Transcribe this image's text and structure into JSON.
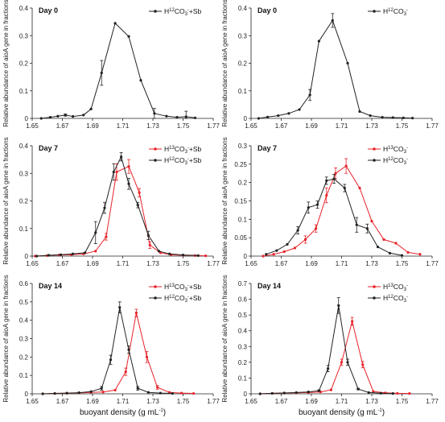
{
  "colors": {
    "black_series": "#222222",
    "red_series": "#e8232a",
    "axis": "#222222"
  },
  "chart_data": [
    {
      "type": "line",
      "title": "Day 0",
      "xlabel": "",
      "ylabel": "Relative abundance of aioA gene in fractions",
      "xlim": [
        1.65,
        1.77
      ],
      "ylim": [
        0,
        0.4
      ],
      "xticks": [
        "1.65",
        "1.67",
        "1.69",
        "1.71",
        "1.73",
        "1.75",
        "1.77"
      ],
      "yticks": [
        "0",
        "0.1",
        "0.2",
        "0.3",
        "0.4"
      ],
      "legend_position": "top-right",
      "series": [
        {
          "name": "H12CO3-+Sb",
          "legend": {
            "pre": "H",
            "sup": "12",
            "mid": "CO",
            "sub": "3",
            "post": "+Sb",
            "sup2": "-"
          },
          "color": "black",
          "x": [
            1.656,
            1.662,
            1.667,
            1.672,
            1.677,
            1.684,
            1.689,
            1.696,
            1.705,
            1.714,
            1.722,
            1.731,
            1.739,
            1.746,
            1.752,
            1.758
          ],
          "y": [
            0.0,
            0.004,
            0.008,
            0.012,
            0.007,
            0.012,
            0.034,
            0.165,
            0.345,
            0.297,
            0.138,
            0.018,
            0.008,
            0.004,
            0.006,
            0.002
          ],
          "err": [
            0,
            0,
            0,
            0.004,
            0,
            0,
            0,
            0.045,
            0,
            0,
            0,
            0.018,
            0,
            0,
            0.02,
            0
          ]
        }
      ]
    },
    {
      "type": "line",
      "title": "Day 0",
      "xlabel": "",
      "ylabel": "Relative abundance of aioA gene in fractions",
      "xlim": [
        1.65,
        1.77
      ],
      "ylim": [
        0,
        0.4
      ],
      "xticks": [
        "1.65",
        "1.67",
        "1.69",
        "1.71",
        "1.73",
        "1.75",
        "1.77"
      ],
      "yticks": [
        "0",
        "0.1",
        "0.2",
        "0.3",
        "0.4"
      ],
      "legend_position": "top-right",
      "series": [
        {
          "name": "H12CO3-",
          "legend": {
            "pre": "H",
            "sup": "12",
            "mid": "CO",
            "sub": "3",
            "post": "",
            "sup2": "-"
          },
          "color": "black",
          "x": [
            1.655,
            1.661,
            1.668,
            1.675,
            1.682,
            1.689,
            1.695,
            1.704,
            1.714,
            1.722,
            1.729,
            1.737,
            1.744,
            1.751,
            1.757
          ],
          "y": [
            0.0,
            0.005,
            0.01,
            0.018,
            0.032,
            0.085,
            0.28,
            0.355,
            0.2,
            0.025,
            0.01,
            0.004,
            0.003,
            0.002,
            0.001
          ],
          "err": [
            0,
            0,
            0,
            0,
            0,
            0.02,
            0,
            0.025,
            0,
            0,
            0,
            0,
            0,
            0,
            0
          ]
        }
      ]
    },
    {
      "type": "line",
      "title": "Day 7",
      "xlabel": "",
      "ylabel": "Relative abundance of aioA gene in fractions",
      "xlim": [
        1.65,
        1.77
      ],
      "ylim": [
        0,
        0.4
      ],
      "xticks": [
        "1.65",
        "1.67",
        "1.69",
        "1.71",
        "1.73",
        "1.75",
        "1.77"
      ],
      "yticks": [
        "0",
        "0.1",
        "0.2",
        "0.3",
        "0.4"
      ],
      "legend_position": "top-right",
      "series": [
        {
          "name": "H13CO3-+Sb",
          "legend": {
            "pre": "H",
            "sup": "13",
            "mid": "CO",
            "sub": "3",
            "post": "+Sb",
            "sup2": "-"
          },
          "color": "red",
          "x": [
            1.652,
            1.66,
            1.668,
            1.676,
            1.684,
            1.692,
            1.699,
            1.706,
            1.714,
            1.721,
            1.728,
            1.735,
            1.742,
            1.75,
            1.758,
            1.765
          ],
          "y": [
            0.0,
            0.002,
            0.004,
            0.005,
            0.008,
            0.018,
            0.07,
            0.305,
            0.325,
            0.23,
            0.04,
            0.012,
            0.005,
            0.003,
            0.002,
            0.001
          ],
          "err": [
            0,
            0,
            0,
            0,
            0,
            0,
            0.012,
            0.03,
            0.025,
            0.015,
            0.012,
            0,
            0,
            0,
            0,
            0
          ]
        },
        {
          "name": "H12CO3-+Sb",
          "legend": {
            "pre": "H",
            "sup": "12",
            "mid": "CO",
            "sub": "3",
            "post": "+Sb",
            "sup2": "-"
          },
          "color": "black",
          "x": [
            1.653,
            1.661,
            1.669,
            1.677,
            1.685,
            1.692,
            1.698,
            1.704,
            1.709,
            1.714,
            1.72,
            1.727,
            1.734,
            1.741,
            1.75,
            1.76
          ],
          "y": [
            0.0,
            0.003,
            0.005,
            0.008,
            0.012,
            0.085,
            0.175,
            0.305,
            0.36,
            0.262,
            0.185,
            0.075,
            0.018,
            0.008,
            0.004,
            0.002
          ],
          "err": [
            0,
            0,
            0,
            0,
            0,
            0.04,
            0.02,
            0.03,
            0.015,
            0.02,
            0.01,
            0.015,
            0,
            0,
            0,
            0
          ]
        }
      ]
    },
    {
      "type": "line",
      "title": "Day 7",
      "xlabel": "",
      "ylabel": "Relative abundance of aioA gene in fractions",
      "xlim": [
        1.65,
        1.77
      ],
      "ylim": [
        0,
        0.3
      ],
      "xticks": [
        "1.65",
        "1.67",
        "1.69",
        "1.71",
        "1.73",
        "1.75",
        "1.77"
      ],
      "yticks": [
        "0",
        "0.05",
        "0.1",
        "0.15",
        "0.2",
        "0.25",
        "0.3"
      ],
      "legend_position": "top-right",
      "series": [
        {
          "name": "H13CO3-",
          "legend": {
            "pre": "H",
            "sup": "13",
            "mid": "CO",
            "sub": "3",
            "post": "",
            "sup2": "-"
          },
          "color": "red",
          "x": [
            1.658,
            1.665,
            1.672,
            1.679,
            1.686,
            1.693,
            1.7,
            1.706,
            1.713,
            1.722,
            1.73,
            1.738,
            1.746,
            1.754,
            1.762
          ],
          "y": [
            0.0,
            0.005,
            0.012,
            0.022,
            0.045,
            0.075,
            0.165,
            0.225,
            0.245,
            0.185,
            0.095,
            0.045,
            0.035,
            0.01,
            0.005
          ],
          "err": [
            0,
            0,
            0,
            0,
            0.01,
            0.01,
            0.02,
            0.015,
            0.02,
            0,
            0,
            0,
            0,
            0,
            0
          ]
        },
        {
          "name": "H12CO3-",
          "legend": {
            "pre": "H",
            "sup": "12",
            "mid": "CO",
            "sub": "3",
            "post": "",
            "sup2": "-"
          },
          "color": "black",
          "x": [
            1.66,
            1.667,
            1.674,
            1.681,
            1.688,
            1.694,
            1.7,
            1.705,
            1.712,
            1.72,
            1.727,
            1.734,
            1.742,
            1.75
          ],
          "y": [
            0.005,
            0.015,
            0.032,
            0.07,
            0.132,
            0.14,
            0.205,
            0.21,
            0.185,
            0.085,
            0.075,
            0.025,
            0.008,
            0.002
          ],
          "err": [
            0,
            0,
            0,
            0.01,
            0.015,
            0.01,
            0.01,
            0.012,
            0.01,
            0.02,
            0.012,
            0,
            0,
            0
          ]
        }
      ]
    },
    {
      "type": "line",
      "title": "Day 14",
      "xlabel": "buoyant density (g mL-1)",
      "ylabel": "Relative abundance of aioA gene in fractions",
      "xlim": [
        1.65,
        1.77
      ],
      "ylim": [
        0,
        0.6
      ],
      "xticks": [
        "1.65",
        "1.67",
        "1.69",
        "1.71",
        "1.73",
        "1.75",
        "1.77"
      ],
      "yticks": [
        "0",
        "0.1",
        "0.2",
        "0.3",
        "0.4",
        "0.5",
        "0.6"
      ],
      "legend_position": "top-right",
      "series": [
        {
          "name": "H13CO3-+Sb",
          "legend": {
            "pre": "H",
            "sup": "13",
            "mid": "CO",
            "sub": "3",
            "post": "+Sb",
            "sup2": "-"
          },
          "color": "red",
          "x": [
            1.657,
            1.665,
            1.673,
            1.681,
            1.689,
            1.697,
            1.705,
            1.712,
            1.719,
            1.726,
            1.733,
            1.741,
            1.749,
            1.757
          ],
          "y": [
            0.0,
            0.002,
            0.003,
            0.005,
            0.008,
            0.01,
            0.02,
            0.12,
            0.44,
            0.2,
            0.035,
            0.008,
            0.004,
            0.002
          ],
          "err": [
            0,
            0,
            0,
            0,
            0,
            0,
            0,
            0.02,
            0.02,
            0.03,
            0.01,
            0,
            0,
            0
          ]
        },
        {
          "name": "H12CO3-+Sb",
          "legend": {
            "pre": "H",
            "sup": "12",
            "mid": "CO",
            "sub": "3",
            "post": "+Sb",
            "sup2": "-"
          },
          "color": "black",
          "x": [
            1.657,
            1.665,
            1.673,
            1.681,
            1.689,
            1.696,
            1.702,
            1.708,
            1.714,
            1.72,
            1.727,
            1.735,
            1.743
          ],
          "y": [
            0.0,
            0.002,
            0.004,
            0.006,
            0.012,
            0.03,
            0.185,
            0.47,
            0.24,
            0.03,
            0.008,
            0.004,
            0.002
          ],
          "err": [
            0,
            0,
            0,
            0,
            0,
            0.01,
            0.025,
            0.03,
            0.02,
            0.01,
            0,
            0,
            0
          ]
        }
      ]
    },
    {
      "type": "line",
      "title": "Day 14",
      "xlabel": "buoyant density (g mL-1)",
      "ylabel": "Relative abundance of aioA gene in fractions",
      "xlim": [
        1.65,
        1.77
      ],
      "ylim": [
        0,
        0.7
      ],
      "xticks": [
        "1.65",
        "1.67",
        "1.69",
        "1.71",
        "1.73",
        "1.75",
        "1.77"
      ],
      "yticks": [
        "0",
        "0.1",
        "0.2",
        "0.3",
        "0.4",
        "0.5",
        "0.6",
        "0.7"
      ],
      "legend_position": "top-right",
      "series": [
        {
          "name": "H13CO3-",
          "legend": {
            "pre": "H",
            "sup": "13",
            "mid": "CO",
            "sub": "3",
            "post": "",
            "sup2": "-"
          },
          "color": "red",
          "x": [
            1.656,
            1.664,
            1.672,
            1.68,
            1.688,
            1.696,
            1.703,
            1.71,
            1.717,
            1.724,
            1.731,
            1.739,
            1.747,
            1.755
          ],
          "y": [
            0.0,
            0.003,
            0.005,
            0.006,
            0.008,
            0.012,
            0.025,
            0.2,
            0.46,
            0.185,
            0.015,
            0.006,
            0.003,
            0.002
          ],
          "err": [
            0,
            0,
            0,
            0,
            0,
            0,
            0,
            0.02,
            0.025,
            0.02,
            0,
            0,
            0,
            0
          ]
        },
        {
          "name": "H12CO3-",
          "legend": {
            "pre": "H",
            "sup": "12",
            "mid": "CO",
            "sub": "3",
            "post": "",
            "sup2": "-"
          },
          "color": "black",
          "x": [
            1.656,
            1.664,
            1.672,
            1.68,
            1.688,
            1.695,
            1.701,
            1.708,
            1.714,
            1.721,
            1.728,
            1.736,
            1.744
          ],
          "y": [
            0.0,
            0.003,
            0.005,
            0.008,
            0.012,
            0.02,
            0.16,
            0.56,
            0.2,
            0.03,
            0.008,
            0.004,
            0.002
          ],
          "err": [
            0,
            0,
            0,
            0,
            0,
            0.005,
            0.02,
            0.05,
            0.02,
            0.005,
            0,
            0,
            0
          ]
        }
      ]
    }
  ]
}
